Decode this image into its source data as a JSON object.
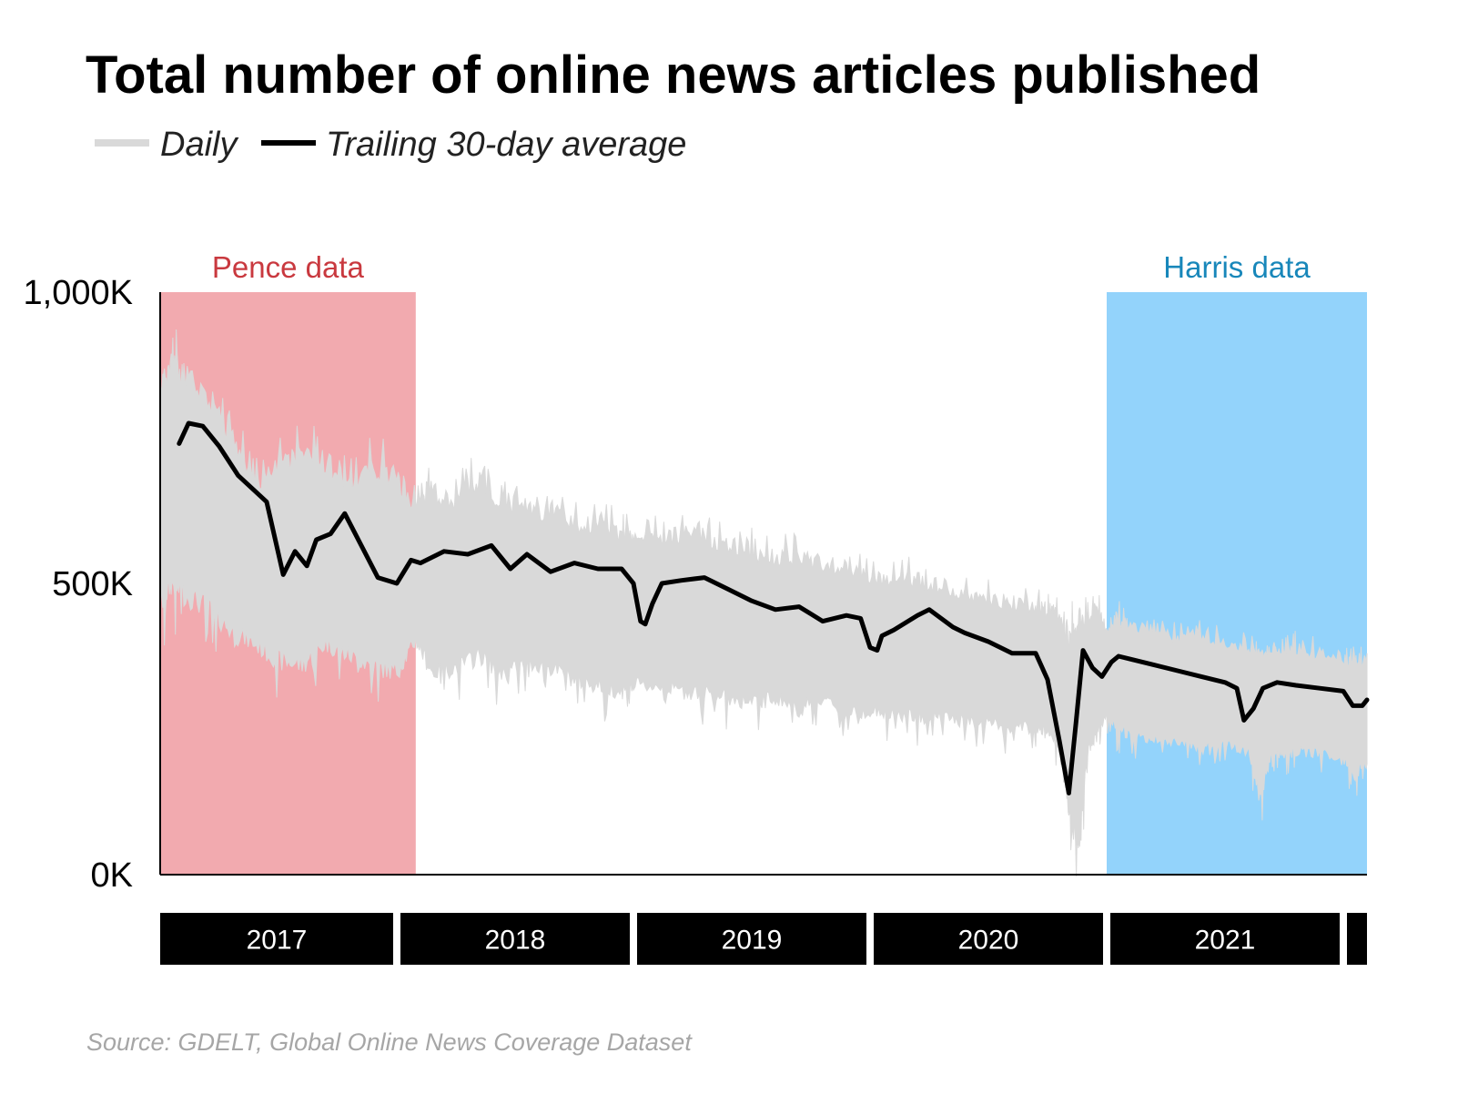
{
  "chart_data": {
    "type": "line",
    "title": "Total number of online news articles published",
    "source": "Source: GDELT, Global Online News Coverage Dataset",
    "y_axis": {
      "min": 0,
      "max": 1000000,
      "ticks": [
        {
          "value": 0,
          "label": "0K"
        },
        {
          "value": 500000,
          "label": "500K"
        },
        {
          "value": 1000000,
          "label": "1,000K"
        }
      ]
    },
    "x_axis": {
      "start": 2017.0,
      "end": 2022.1,
      "years": [
        {
          "label": "2017",
          "start": 2017.0,
          "end": 2018.0
        },
        {
          "label": "2018",
          "start": 2018.0,
          "end": 2019.0
        },
        {
          "label": "2019",
          "start": 2019.0,
          "end": 2020.0
        },
        {
          "label": "2020",
          "start": 2020.0,
          "end": 2021.0
        },
        {
          "label": "2021",
          "start": 2021.0,
          "end": 2022.0
        },
        {
          "label": "",
          "start": 2022.0,
          "end": 2022.1
        }
      ]
    },
    "regions": [
      {
        "label": "Pence data",
        "start": 2017.0,
        "end": 2018.08,
        "color": "#f2aaaf",
        "label_color": "#c9393f"
      },
      {
        "label": "Harris data",
        "start": 2021.0,
        "end": 2022.1,
        "color": "#93d3fb",
        "label_color": "#1887ba"
      }
    ],
    "legend": {
      "position": "top-left",
      "items": [
        {
          "label": "Daily",
          "color": "#d9d9d9"
        },
        {
          "label": "Trailing 30-day average",
          "color": "#000000"
        }
      ]
    },
    "series": [
      {
        "name": "Daily",
        "color": "#d9d9d9",
        "x": [
          2017.0,
          2017.05,
          2017.1,
          2017.2,
          2017.3,
          2017.4,
          2017.5,
          2017.6,
          2017.7,
          2017.8,
          2017.9,
          2018.0,
          2018.08,
          2018.15,
          2018.25,
          2018.35,
          2018.45,
          2018.55,
          2018.65,
          2018.75,
          2018.85,
          2018.95,
          2019.0,
          2019.1,
          2019.2,
          2019.3,
          2019.4,
          2019.5,
          2019.6,
          2019.7,
          2019.8,
          2019.9,
          2020.0,
          2020.1,
          2020.2,
          2020.3,
          2020.4,
          2020.5,
          2020.6,
          2020.7,
          2020.75,
          2020.8,
          2020.84,
          2020.88,
          2020.92,
          2020.96,
          2021.0,
          2021.05,
          2021.1,
          2021.2,
          2021.3,
          2021.4,
          2021.5,
          2021.6,
          2021.65,
          2021.7,
          2021.75,
          2021.8,
          2021.9,
          2022.0,
          2022.05,
          2022.1
        ],
        "high": [
          850000,
          910000,
          880000,
          850000,
          770000,
          690000,
          720000,
          750000,
          730000,
          680000,
          720000,
          700000,
          650000,
          680000,
          660000,
          700000,
          650000,
          640000,
          640000,
          620000,
          620000,
          600000,
          590000,
          590000,
          600000,
          590000,
          580000,
          570000,
          560000,
          560000,
          550000,
          540000,
          520000,
          520000,
          520000,
          510000,
          500000,
          490000,
          480000,
          470000,
          460000,
          470000,
          420000,
          460000,
          460000,
          470000,
          430000,
          450000,
          440000,
          430000,
          420000,
          420000,
          410000,
          400000,
          390000,
          400000,
          400000,
          400000,
          390000,
          380000,
          370000,
          380000
        ],
        "low": [
          440000,
          480000,
          460000,
          440000,
          400000,
          380000,
          350000,
          340000,
          380000,
          360000,
          340000,
          330000,
          390000,
          330000,
          340000,
          360000,
          330000,
          350000,
          340000,
          320000,
          310000,
          300000,
          310000,
          310000,
          300000,
          300000,
          290000,
          280000,
          290000,
          270000,
          290000,
          260000,
          270000,
          260000,
          260000,
          260000,
          250000,
          250000,
          240000,
          240000,
          230000,
          200000,
          100000,
          20000,
          200000,
          240000,
          260000,
          240000,
          230000,
          220000,
          220000,
          210000,
          220000,
          200000,
          120000,
          200000,
          200000,
          200000,
          200000,
          190000,
          160000,
          190000
        ]
      },
      {
        "name": "Trailing 30-day average",
        "color": "#000000",
        "x": [
          2017.08,
          2017.12,
          2017.18,
          2017.25,
          2017.33,
          2017.45,
          2017.52,
          2017.57,
          2017.62,
          2017.66,
          2017.72,
          2017.78,
          2017.85,
          2017.92,
          2018.0,
          2018.03,
          2018.06,
          2018.1,
          2018.2,
          2018.3,
          2018.4,
          2018.48,
          2018.55,
          2018.65,
          2018.75,
          2018.85,
          2018.95,
          2019.0,
          2019.03,
          2019.05,
          2019.08,
          2019.12,
          2019.2,
          2019.3,
          2019.4,
          2019.5,
          2019.6,
          2019.7,
          2019.8,
          2019.9,
          2019.96,
          2020.0,
          2020.03,
          2020.05,
          2020.1,
          2020.2,
          2020.25,
          2020.3,
          2020.35,
          2020.4,
          2020.5,
          2020.6,
          2020.7,
          2020.75,
          2020.8,
          2020.84,
          2020.87,
          2020.9,
          2020.94,
          2020.98,
          2021.02,
          2021.05,
          2021.1,
          2021.2,
          2021.3,
          2021.4,
          2021.5,
          2021.55,
          2021.58,
          2021.62,
          2021.66,
          2021.72,
          2021.8,
          2021.9,
          2022.0,
          2022.04,
          2022.08,
          2022.1
        ],
        "values": [
          740000,
          775000,
          770000,
          735000,
          685000,
          640000,
          515000,
          555000,
          530000,
          575000,
          585000,
          620000,
          565000,
          510000,
          500000,
          520000,
          540000,
          535000,
          555000,
          550000,
          565000,
          525000,
          550000,
          520000,
          535000,
          525000,
          525000,
          500000,
          435000,
          430000,
          465000,
          500000,
          505000,
          510000,
          490000,
          470000,
          455000,
          460000,
          435000,
          445000,
          440000,
          390000,
          385000,
          410000,
          420000,
          445000,
          455000,
          440000,
          425000,
          415000,
          400000,
          380000,
          380000,
          335000,
          230000,
          140000,
          260000,
          385000,
          355000,
          340000,
          365000,
          375000,
          370000,
          360000,
          350000,
          340000,
          330000,
          320000,
          265000,
          285000,
          320000,
          330000,
          325000,
          320000,
          315000,
          290000,
          290000,
          300000
        ]
      }
    ]
  }
}
